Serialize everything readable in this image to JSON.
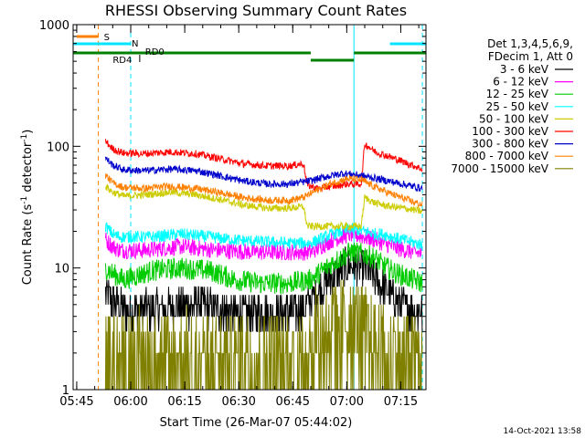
{
  "chart_data": {
    "type": "line",
    "title": "RHESSI Observing Summary Count Rates",
    "xlabel": "Start Time (26-Mar-07 05:44:02)",
    "ylabel_main": "Count Rate (s",
    "ylabel_sup1": "-1",
    "ylabel_mid": " detector",
    "ylabel_sup2": "-1",
    "ylabel_end": ")",
    "y_scale": "log",
    "ylim": [
      1,
      1000
    ],
    "xlim_min": [
      0,
      98
    ],
    "x_ticks": [
      {
        "min": 1,
        "label": "05:45"
      },
      {
        "min": 16,
        "label": "06:00"
      },
      {
        "min": 31,
        "label": "06:15"
      },
      {
        "min": 46,
        "label": "06:30"
      },
      {
        "min": 61,
        "label": "06:45"
      },
      {
        "min": 76,
        "label": "07:00"
      },
      {
        "min": 91,
        "label": "07:15"
      }
    ],
    "y_ticks": [
      {
        "value": 1,
        "label": "1"
      },
      {
        "value": 10,
        "label": "10"
      },
      {
        "value": 100,
        "label": "100"
      },
      {
        "value": 1000,
        "label": "1000"
      }
    ],
    "legend": {
      "placement": "right",
      "header": [
        "Det 1,3,4,5,6,9,",
        "FDecim 1, Att 0"
      ]
    },
    "annotations": {
      "s_label": "S",
      "n_label": "N",
      "rd0_label": "RD0",
      "rd4_label": "RD4",
      "timestamp": "14-Oct-2021 13:58"
    },
    "markers": {
      "saa_bar": {
        "start": 1,
        "end": 7,
        "color": "#ff8000"
      },
      "night_bars": [
        [
          0,
          16
        ],
        [
          88,
          98
        ]
      ],
      "rd0_bars": [
        [
          0,
          66
        ],
        [
          66,
          78
        ],
        [
          78,
          98
        ]
      ],
      "vlines_cyan_solid": [
        0,
        78
      ],
      "vlines_cyan_dashed": [
        16,
        97
      ],
      "vline_orange_dashed": 7
    },
    "series": [
      {
        "name": "3 - 6 keV",
        "color": "#000000",
        "points": [
          [
            9,
            6
          ],
          [
            12,
            5
          ],
          [
            15,
            4.5
          ],
          [
            25,
            4.6
          ],
          [
            35,
            5
          ],
          [
            45,
            4.3
          ],
          [
            55,
            4.3
          ],
          [
            64,
            4.6
          ],
          [
            70,
            7.5
          ],
          [
            76,
            10.5
          ],
          [
            81,
            10
          ],
          [
            86,
            7
          ],
          [
            91,
            5
          ],
          [
            97,
            4.2
          ]
        ]
      },
      {
        "name": "6 - 12 keV",
        "color": "#ff00ff",
        "points": [
          [
            9,
            17
          ],
          [
            11,
            15
          ],
          [
            13,
            14
          ],
          [
            20,
            14
          ],
          [
            30,
            15
          ],
          [
            40,
            14
          ],
          [
            50,
            13.5
          ],
          [
            60,
            13.5
          ],
          [
            66,
            13.5
          ],
          [
            72,
            17
          ],
          [
            77,
            19
          ],
          [
            81,
            18
          ],
          [
            84,
            17
          ],
          [
            86,
            16
          ],
          [
            90,
            14.5
          ],
          [
            97,
            13
          ]
        ]
      },
      {
        "name": "12 - 25 keV",
        "color": "#00cc00",
        "points": [
          [
            9,
            10
          ],
          [
            11,
            9
          ],
          [
            14,
            8
          ],
          [
            22,
            9.5
          ],
          [
            30,
            10
          ],
          [
            38,
            9.5
          ],
          [
            45,
            8
          ],
          [
            52,
            7.5
          ],
          [
            60,
            7.5
          ],
          [
            66,
            8
          ],
          [
            72,
            11
          ],
          [
            77,
            13.5
          ],
          [
            81,
            13
          ],
          [
            84,
            12
          ],
          [
            86,
            10.5
          ],
          [
            90,
            9
          ],
          [
            97,
            7.5
          ]
        ]
      },
      {
        "name": "25 - 50 keV",
        "color": "#00ffff",
        "points": [
          [
            9,
            22
          ],
          [
            11,
            19
          ],
          [
            13,
            18
          ],
          [
            22,
            18
          ],
          [
            30,
            19
          ],
          [
            38,
            18
          ],
          [
            45,
            17
          ],
          [
            52,
            16.5
          ],
          [
            60,
            16
          ],
          [
            66,
            16
          ],
          [
            72,
            19
          ],
          [
            77,
            21
          ],
          [
            81,
            20
          ],
          [
            84,
            19
          ],
          [
            86,
            19
          ],
          [
            90,
            17.5
          ],
          [
            97,
            15.5
          ]
        ]
      },
      {
        "name": "50 - 100 keV",
        "color": "#cccc00",
        "points": [
          [
            9,
            47
          ],
          [
            11,
            42
          ],
          [
            14,
            39
          ],
          [
            20,
            40
          ],
          [
            27,
            42
          ],
          [
            34,
            40
          ],
          [
            40,
            37
          ],
          [
            47,
            33
          ],
          [
            54,
            31
          ],
          [
            60,
            31
          ],
          [
            64,
            32
          ],
          [
            65,
            22
          ],
          [
            67,
            22
          ],
          [
            72,
            22
          ],
          [
            77,
            22
          ],
          [
            80,
            22
          ],
          [
            81,
            38
          ],
          [
            84,
            34
          ],
          [
            88,
            32
          ],
          [
            92,
            31
          ],
          [
            97,
            29
          ]
        ]
      },
      {
        "name": "100 - 300 keV",
        "color": "#ff0000",
        "points": [
          [
            9,
            110
          ],
          [
            11,
            95
          ],
          [
            14,
            88
          ],
          [
            20,
            87
          ],
          [
            27,
            90
          ],
          [
            34,
            87
          ],
          [
            40,
            80
          ],
          [
            47,
            72
          ],
          [
            54,
            69
          ],
          [
            60,
            69
          ],
          [
            64,
            72
          ],
          [
            65,
            48
          ],
          [
            68,
            45
          ],
          [
            72,
            47
          ],
          [
            76,
            49
          ],
          [
            80,
            49
          ],
          [
            81,
            105
          ],
          [
            84,
            90
          ],
          [
            88,
            82
          ],
          [
            92,
            74
          ],
          [
            97,
            65
          ]
        ]
      },
      {
        "name": "300 - 800 keV",
        "color": "#0000cc",
        "points": [
          [
            9,
            80
          ],
          [
            11,
            70
          ],
          [
            14,
            64
          ],
          [
            20,
            63
          ],
          [
            27,
            65
          ],
          [
            34,
            63
          ],
          [
            40,
            58
          ],
          [
            47,
            52
          ],
          [
            54,
            49
          ],
          [
            60,
            49
          ],
          [
            64,
            51
          ],
          [
            66,
            52
          ],
          [
            70,
            56
          ],
          [
            75,
            60
          ],
          [
            79,
            58
          ],
          [
            82,
            56
          ],
          [
            86,
            53
          ],
          [
            90,
            50
          ],
          [
            97,
            45
          ]
        ]
      },
      {
        "name": "800 - 7000 keV",
        "color": "#ff8000",
        "points": [
          [
            9,
            58
          ],
          [
            11,
            50
          ],
          [
            14,
            46
          ],
          [
            20,
            45
          ],
          [
            27,
            47
          ],
          [
            34,
            45
          ],
          [
            40,
            42
          ],
          [
            47,
            38
          ],
          [
            54,
            36
          ],
          [
            60,
            36
          ],
          [
            64,
            38
          ],
          [
            68,
            44
          ],
          [
            72,
            50
          ],
          [
            76,
            54
          ],
          [
            80,
            53
          ],
          [
            84,
            46
          ],
          [
            88,
            41
          ],
          [
            92,
            37
          ],
          [
            97,
            33
          ]
        ]
      },
      {
        "name": "7000 - 15000 keV",
        "color": "#808000",
        "points": [
          [
            9,
            2.1
          ],
          [
            16,
            2.1
          ],
          [
            30,
            2.1
          ],
          [
            40,
            2
          ],
          [
            50,
            2
          ],
          [
            60,
            2
          ],
          [
            64,
            2.2
          ],
          [
            68,
            3.4
          ],
          [
            72,
            3.8
          ],
          [
            77,
            3.8
          ],
          [
            80,
            3.5
          ],
          [
            84,
            2.4
          ],
          [
            90,
            2.1
          ],
          [
            97,
            2
          ]
        ]
      }
    ]
  }
}
